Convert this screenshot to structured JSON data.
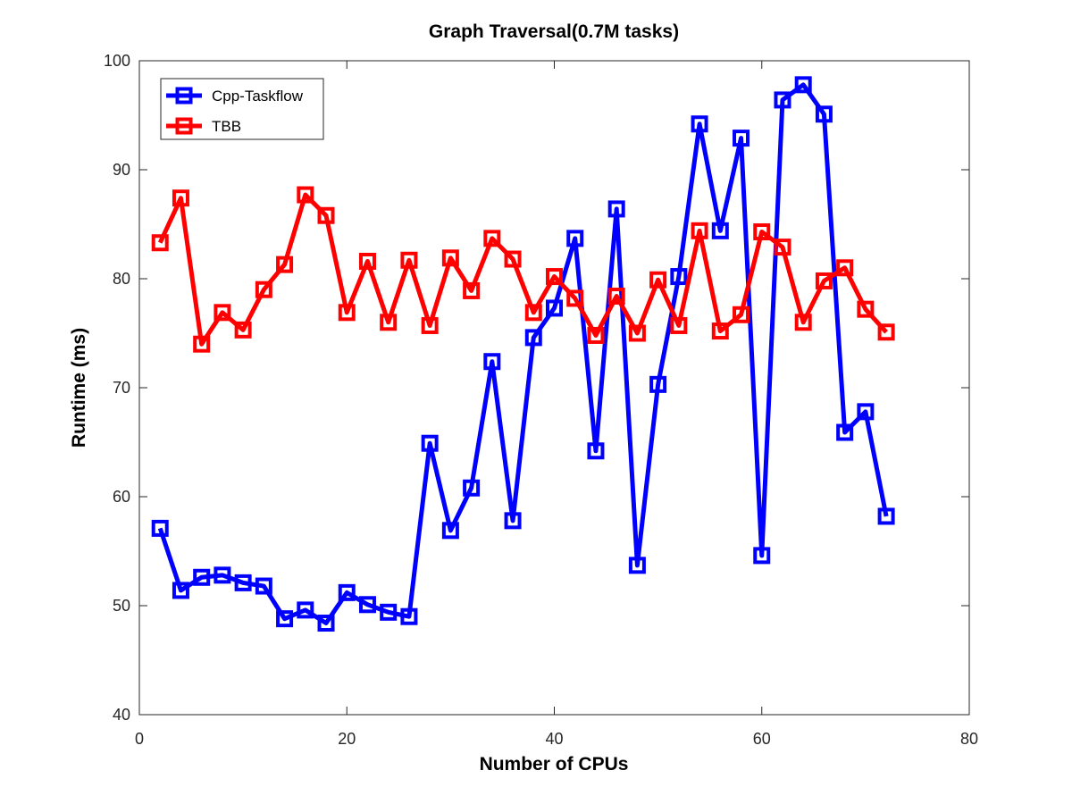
{
  "chart_data": {
    "type": "line",
    "title": "Graph Traversal(0.7M tasks)",
    "xlabel": "Number of CPUs",
    "ylabel": "Runtime (ms)",
    "xlim": [
      0,
      80
    ],
    "ylim": [
      40,
      100
    ],
    "xticks": [
      0,
      20,
      40,
      60,
      80
    ],
    "yticks": [
      40,
      50,
      60,
      70,
      80,
      90,
      100
    ],
    "grid": false,
    "legend_position": "top-left",
    "marker": "square",
    "x": [
      2,
      4,
      6,
      8,
      10,
      12,
      14,
      16,
      18,
      20,
      22,
      24,
      26,
      28,
      30,
      32,
      34,
      36,
      38,
      40,
      42,
      44,
      46,
      48,
      50,
      52,
      54,
      56,
      58,
      60,
      62,
      64,
      66,
      68,
      70,
      72
    ],
    "series": [
      {
        "name": "Cpp-Taskflow",
        "color": "#0000ff",
        "values": [
          57.1,
          51.4,
          52.6,
          52.8,
          52.1,
          51.8,
          48.8,
          49.6,
          48.4,
          51.2,
          50.1,
          49.4,
          49.0,
          64.9,
          56.9,
          60.8,
          72.4,
          57.8,
          74.6,
          77.3,
          83.7,
          64.2,
          86.4,
          53.7,
          70.3,
          80.2,
          94.2,
          84.4,
          92.9,
          54.6,
          96.4,
          97.8,
          95.1,
          65.9,
          67.8,
          58.2
        ]
      },
      {
        "name": "TBB",
        "color": "#ff0000",
        "values": [
          83.3,
          87.4,
          74.0,
          76.9,
          75.3,
          79.0,
          81.3,
          87.7,
          85.8,
          76.9,
          81.6,
          76.0,
          81.7,
          75.7,
          81.9,
          78.9,
          83.7,
          81.8,
          76.9,
          80.2,
          78.2,
          74.8,
          78.4,
          75.0,
          79.9,
          75.7,
          84.4,
          75.2,
          76.7,
          84.3,
          82.9,
          76.0,
          79.8,
          81.0,
          77.2,
          75.1
        ]
      }
    ]
  }
}
